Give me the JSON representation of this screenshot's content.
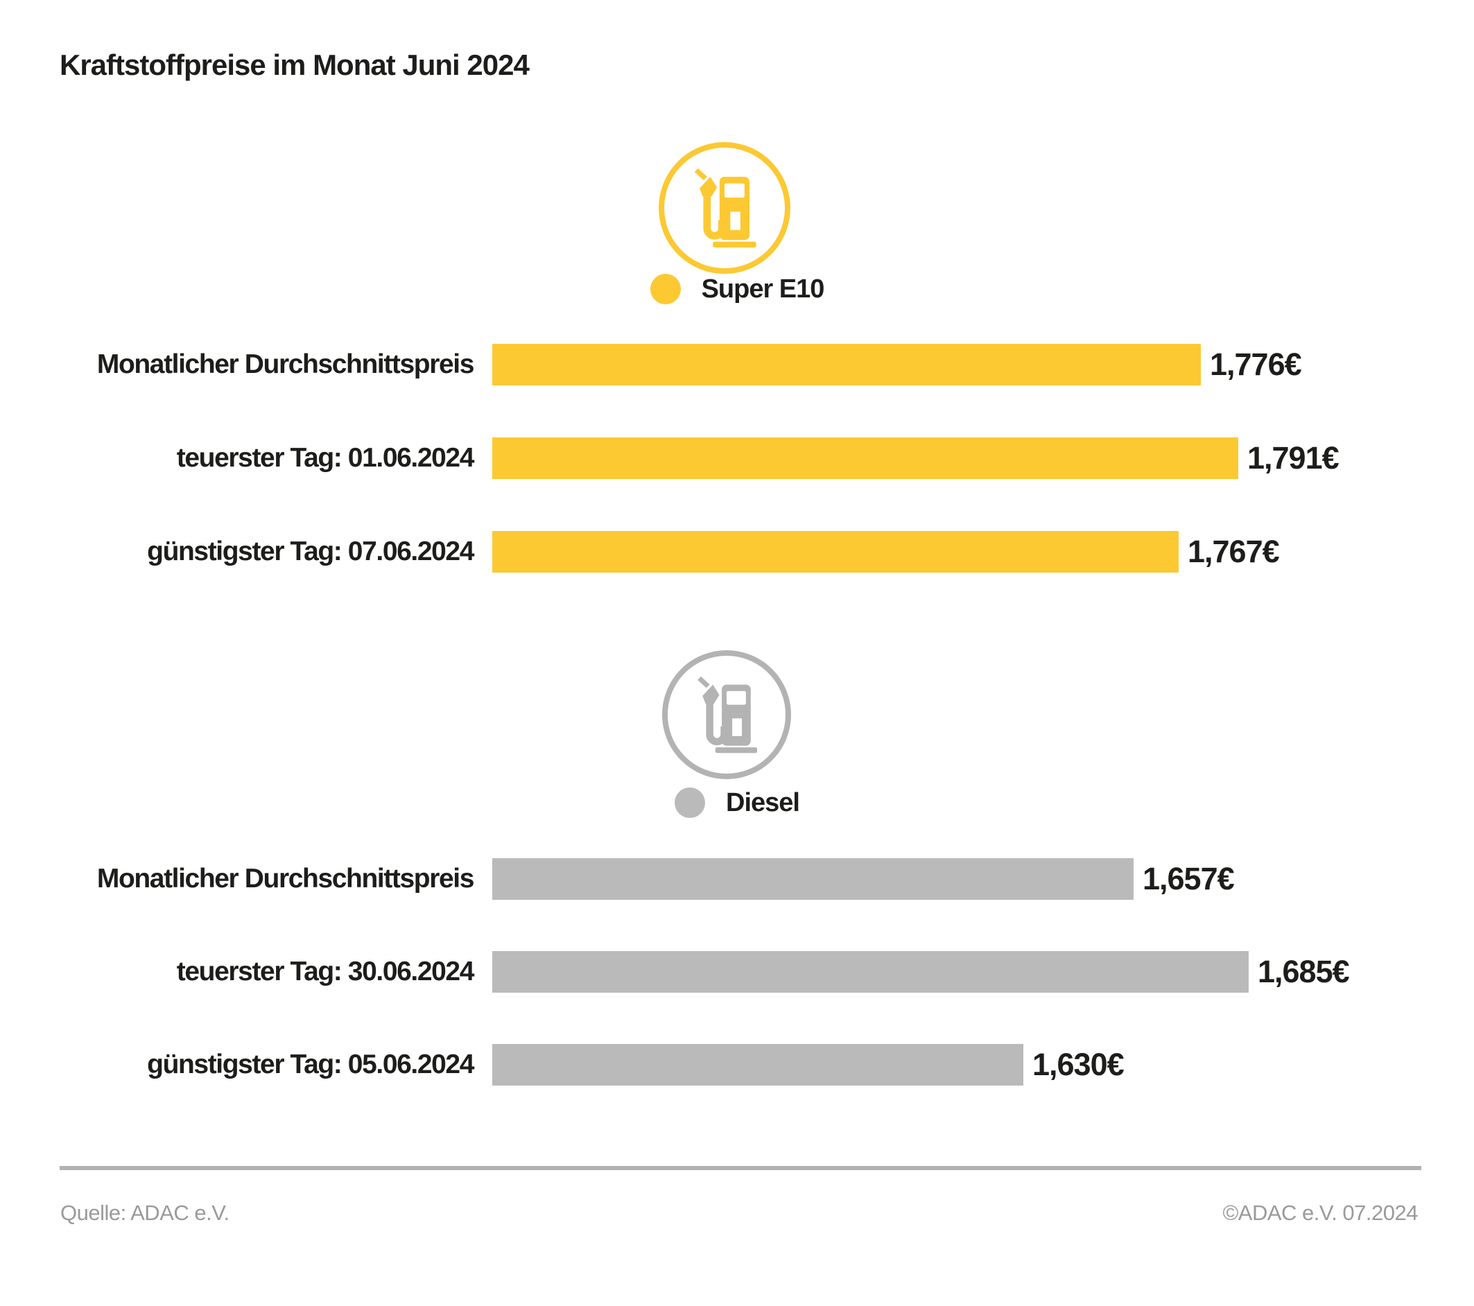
{
  "title": "Kraftstoffpreise im Monat Juni 2024",
  "colors": {
    "super_e10": "#FCC933",
    "diesel": "#BABABA",
    "icon_gray": "#B3B3B3",
    "text": "#1D1D1B",
    "divider": "#B1B1B1",
    "footer_text": "#9A9A9A"
  },
  "chart_data": [
    {
      "type": "bar",
      "orientation": "horizontal",
      "legend_label": "Super E10",
      "icon": "fuel-pump-icon",
      "color": "#FCC933",
      "categories": [
        "Monatlicher Durchschnittspreis",
        "teuerster Tag: 01.06.2024",
        "günstigster Tag: 07.06.2024"
      ],
      "values": [
        1.776,
        1.791,
        1.767
      ],
      "value_labels": [
        "1,776€",
        "1,791€",
        "1,767€"
      ],
      "xlim": [
        1.49,
        1.8
      ],
      "grid": false,
      "axis_visible": false
    },
    {
      "type": "bar",
      "orientation": "horizontal",
      "legend_label": "Diesel",
      "icon": "fuel-pump-icon",
      "color": "#BABABA",
      "categories": [
        "Monatlicher Durchschnittspreis",
        "teuerster Tag: 30.06.2024",
        "günstigster Tag: 05.06.2024"
      ],
      "values": [
        1.657,
        1.685,
        1.63
      ],
      "value_labels": [
        "1,657€",
        "1,685€",
        "1,630€"
      ],
      "xlim": [
        1.5,
        1.69
      ],
      "grid": false,
      "axis_visible": false
    }
  ],
  "footer": {
    "source": "Quelle: ADAC e.V.",
    "copyright": "©ADAC e.V. 07.2024"
  }
}
